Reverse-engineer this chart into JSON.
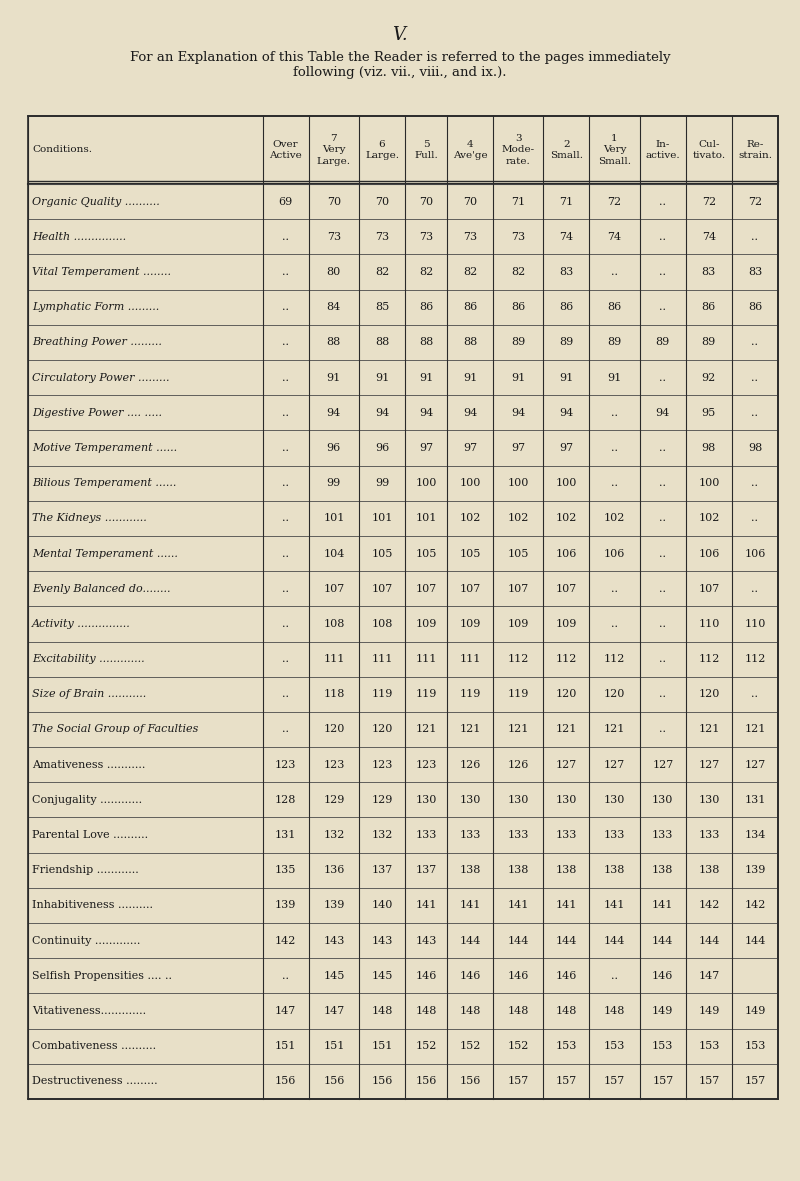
{
  "title_page": "V.",
  "subtitle": "For an Explanation of this Table the Reader is referred to the pages immediately\nfollowing (viz. vii., viii., and ix.).",
  "bg_color": "#e8e0c8",
  "header_row1": [
    "",
    "Over\nActive",
    "7\nVery\nLarge.",
    "6\nLarge.",
    "5\nFull.",
    "4\nAve'ge",
    "3\nMode-\nrate.",
    "2\nSmall.",
    "1\nVery\nSmall.",
    "In-\nactive.",
    "Cul-\ntivato.",
    "Re-\nstrain."
  ],
  "col_label": "Conditions.",
  "rows": [
    [
      "Organic Quality ··········",
      "69",
      "70",
      "70",
      "70",
      "70",
      "71",
      "71",
      "72",
      "..",
      "72",
      "72"
    ],
    [
      "Health ···············",
      "..",
      "73",
      "73",
      "73",
      "73",
      "73",
      "74",
      "74",
      "..",
      "74",
      ".."
    ],
    [
      "Vital Temperament ········",
      "..",
      "80",
      "82",
      "82",
      "82",
      "82",
      "83",
      "..",
      "..",
      "83",
      "83"
    ],
    [
      "Lymphatic Form ·········",
      "..",
      "84",
      "85",
      "86",
      "86",
      "86",
      "86",
      "86",
      "..",
      "86",
      "86"
    ],
    [
      "Breathing Power ·········",
      "..",
      "88",
      "88",
      "88",
      "88",
      "89",
      "89",
      "89",
      "89",
      "89",
      ".."
    ],
    [
      "Circulatory Power ·········",
      "..",
      "91",
      "91",
      "91",
      "91",
      "91",
      "91",
      "91",
      "..",
      "92",
      ".."
    ],
    [
      "Digestive Power ···· ·····",
      "..",
      "94",
      "94",
      "94",
      "94",
      "94",
      "94",
      "..",
      "94",
      "95",
      ".."
    ],
    [
      "Motive Temperament ······",
      "..",
      "96",
      "96",
      "97",
      "97",
      "97",
      "97",
      "..",
      "..",
      "98",
      "98"
    ],
    [
      "Bilious Temperament ······",
      "..",
      "99",
      "99",
      "100",
      "100",
      "100",
      "100",
      "..",
      "..",
      "100",
      ".."
    ],
    [
      "The Kidneys ············",
      "..",
      "101",
      "101",
      "101",
      "102",
      "102",
      "102",
      "102",
      "..",
      "102",
      ".."
    ],
    [
      "Mental Temperament ······",
      "..",
      "104",
      "105",
      "105",
      "105",
      "105",
      "106",
      "106",
      "..",
      "106",
      "106"
    ],
    [
      "Evenly Balanced do.·······",
      "..",
      "107",
      "107",
      "107",
      "107",
      "107",
      "107",
      "..",
      "..",
      "107",
      ".."
    ],
    [
      "Activity ···············",
      "..",
      "108",
      "108",
      "109",
      "109",
      "109",
      "109",
      "..",
      "..",
      "110",
      "110"
    ],
    [
      "Excitability ·············",
      "..",
      "111",
      "111",
      "111",
      "111",
      "112",
      "112",
      "112",
      "..",
      "112",
      "112"
    ],
    [
      "Size of Brain ···········",
      "..",
      "118",
      "119",
      "119",
      "119",
      "119",
      "120",
      "120",
      "..",
      "120",
      ".."
    ],
    [
      "The Social Group of Faculties",
      "..",
      "120",
      "120",
      "121",
      "121",
      "121",
      "121",
      "121",
      "..",
      "121",
      "121"
    ],
    [
      "Amativeness ···········",
      "123",
      "123",
      "123",
      "123",
      "126",
      "126",
      "127",
      "127",
      "127",
      "127",
      "127"
    ],
    [
      "Conjugality ············",
      "128",
      "129",
      "129",
      "130",
      "130",
      "130",
      "130",
      "130",
      "130",
      "130",
      "131"
    ],
    [
      "Parental Love ··········",
      "131",
      "132",
      "132",
      "133",
      "133",
      "133",
      "133",
      "133",
      "133",
      "133",
      "134"
    ],
    [
      "Friendship ············",
      "135",
      "136",
      "137",
      "137",
      "138",
      "138",
      "138",
      "138",
      "138",
      "138",
      "139"
    ],
    [
      "Inhabitiveness ··········",
      "139",
      "139",
      "140",
      "141",
      "141",
      "141",
      "141",
      "141",
      "141",
      "142",
      "142"
    ],
    [
      "Continuity ·············",
      "142",
      "143",
      "143",
      "143",
      "144",
      "144",
      "144",
      "144",
      "144",
      "144",
      "144"
    ],
    [
      "Selfish Propensities ···· ··",
      "..",
      "145",
      "145",
      "146",
      "146",
      "146",
      "146",
      "..",
      "146",
      "147",
      ""
    ],
    [
      "Vitativeness·············",
      "147",
      "147",
      "148",
      "148",
      "148",
      "148",
      "148",
      "148",
      "149",
      "149",
      "149"
    ],
    [
      "Combativeness ··········",
      "151",
      "151",
      "151",
      "152",
      "152",
      "152",
      "153",
      "153",
      "153",
      "153",
      "153"
    ],
    [
      "Destructiveness ·········",
      "156",
      "156",
      "156",
      "156",
      "156",
      "157",
      "157",
      "157",
      "157",
      "157",
      "157"
    ]
  ],
  "col_widths_rel": [
    2.8,
    0.55,
    0.6,
    0.55,
    0.5,
    0.55,
    0.6,
    0.55,
    0.6,
    0.55,
    0.55,
    0.55
  ]
}
